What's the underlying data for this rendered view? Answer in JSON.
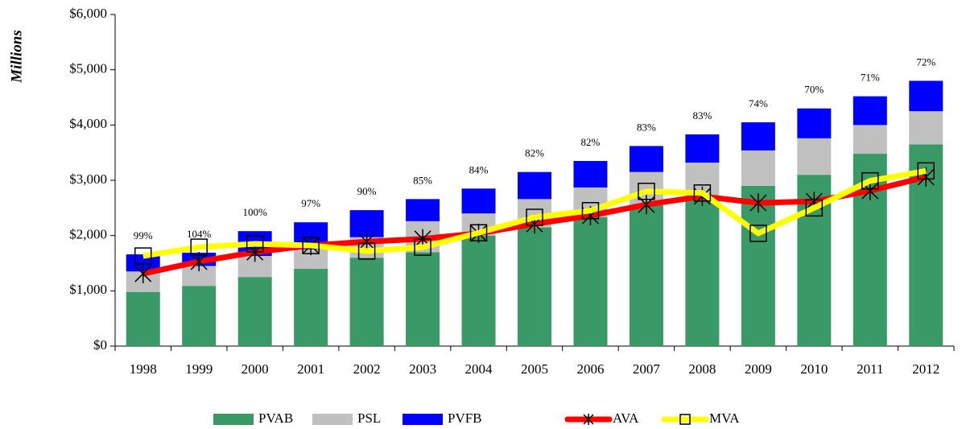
{
  "chart_data": {
    "type": "bar",
    "y_label": "Millions",
    "categories": [
      "1998",
      "1999",
      "2000",
      "2001",
      "2002",
      "2003",
      "2004",
      "2005",
      "2006",
      "2007",
      "2008",
      "2009",
      "2010",
      "2011",
      "2012"
    ],
    "series": [
      {
        "name": "PVAB",
        "type": "bar",
        "color": "#3a9a67",
        "values": [
          980,
          1090,
          1250,
          1400,
          1600,
          1700,
          2000,
          2150,
          2330,
          2550,
          2700,
          2900,
          3100,
          3480,
          3650
        ]
      },
      {
        "name": "PSL",
        "type": "bar",
        "color": "#c0c0c0",
        "values": [
          370,
          360,
          380,
          350,
          370,
          560,
          400,
          510,
          540,
          600,
          620,
          640,
          660,
          520,
          600
        ]
      },
      {
        "name": "PVFB",
        "type": "bar",
        "color": "#0000ff",
        "values": [
          310,
          240,
          450,
          490,
          490,
          400,
          450,
          490,
          480,
          470,
          510,
          510,
          540,
          520,
          550
        ]
      },
      {
        "name": "AVA",
        "type": "line",
        "color": "#ff0000",
        "marker": "asterisk",
        "values": [
          1310,
          1530,
          1700,
          1820,
          1890,
          1940,
          2040,
          2210,
          2360,
          2560,
          2710,
          2590,
          2620,
          2810,
          3060
        ]
      },
      {
        "name": "MVA",
        "type": "line",
        "color": "#ffff00",
        "marker": "square",
        "values": [
          1630,
          1790,
          1850,
          1820,
          1720,
          1790,
          2050,
          2330,
          2450,
          2800,
          2770,
          2040,
          2500,
          2990,
          3170
        ]
      }
    ],
    "funded_ratio": {
      "values": [
        99,
        104,
        100,
        97,
        90,
        85,
        84,
        82,
        82,
        83,
        83,
        74,
        70,
        71,
        72
      ],
      "value_labels": [
        "99%",
        "104%",
        "100%",
        "97%",
        "90%",
        "85%",
        "84%",
        "82%",
        "82%",
        "83%",
        "83%",
        "74%",
        "70%",
        "71%",
        "72%"
      ]
    },
    "ylim": [
      0,
      6000
    ],
    "yticks": [
      {
        "value": 0,
        "label": "$0"
      },
      {
        "value": 1000,
        "label": "$1,000"
      },
      {
        "value": 2000,
        "label": "$2,000"
      },
      {
        "value": 3000,
        "label": "$3,000"
      },
      {
        "value": 4000,
        "label": "$4,000"
      },
      {
        "value": 5000,
        "label": "$5,000"
      },
      {
        "value": 6000,
        "label": "$6,000"
      }
    ],
    "grid": false,
    "legend": "bottom"
  }
}
